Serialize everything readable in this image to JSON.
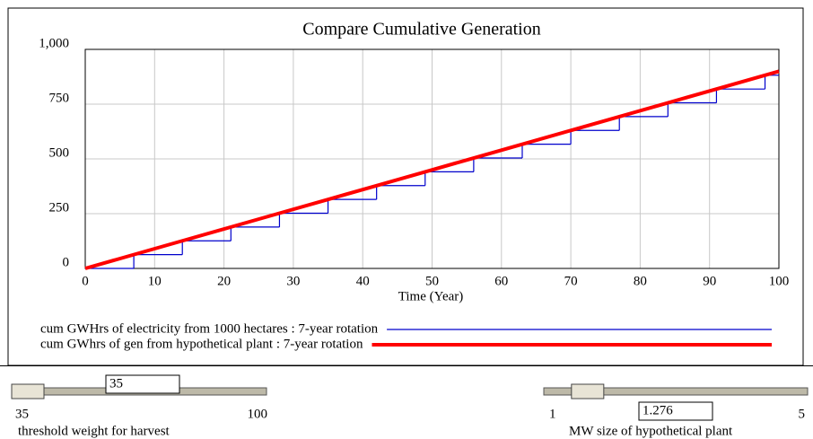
{
  "chart_data": {
    "type": "line",
    "title": "Compare Cumulative Generation",
    "xlabel": "Time (Year)",
    "x": [
      0,
      7,
      14,
      21,
      28,
      35,
      42,
      49,
      56,
      63,
      70,
      77,
      84,
      91,
      98,
      100
    ],
    "series": [
      {
        "name": "cum GWHrs of electricity from 1000 hectares : 7-year rotation",
        "color": "#0000cc",
        "step": true,
        "values": [
          0,
          63,
          126,
          189,
          252,
          315,
          378,
          441,
          504,
          567,
          630,
          693,
          756,
          819,
          882,
          882
        ]
      },
      {
        "name": "cum GWhrs of gen from hypothetical plant : 7-year rotation",
        "color": "#ff0000",
        "step": false,
        "values": [
          0,
          63,
          126,
          189,
          252,
          315,
          378,
          441,
          504,
          567,
          630,
          693,
          756,
          819,
          882,
          900
        ]
      }
    ],
    "xlim": [
      0,
      100
    ],
    "xticks": [
      0,
      10,
      20,
      30,
      40,
      50,
      60,
      70,
      80,
      90,
      100
    ],
    "ylim": [
      0,
      1000
    ],
    "yticks": [
      0,
      250,
      500,
      750,
      {
        "value": 1000,
        "label": "1,000"
      }
    ],
    "grid": true
  },
  "sliders": [
    {
      "label": "threshold weight for harvest",
      "min": 35,
      "max": 100,
      "value": 35
    },
    {
      "label": "MW size of hypothetical plant",
      "min": 1,
      "max": 5,
      "value": 1.276
    }
  ]
}
